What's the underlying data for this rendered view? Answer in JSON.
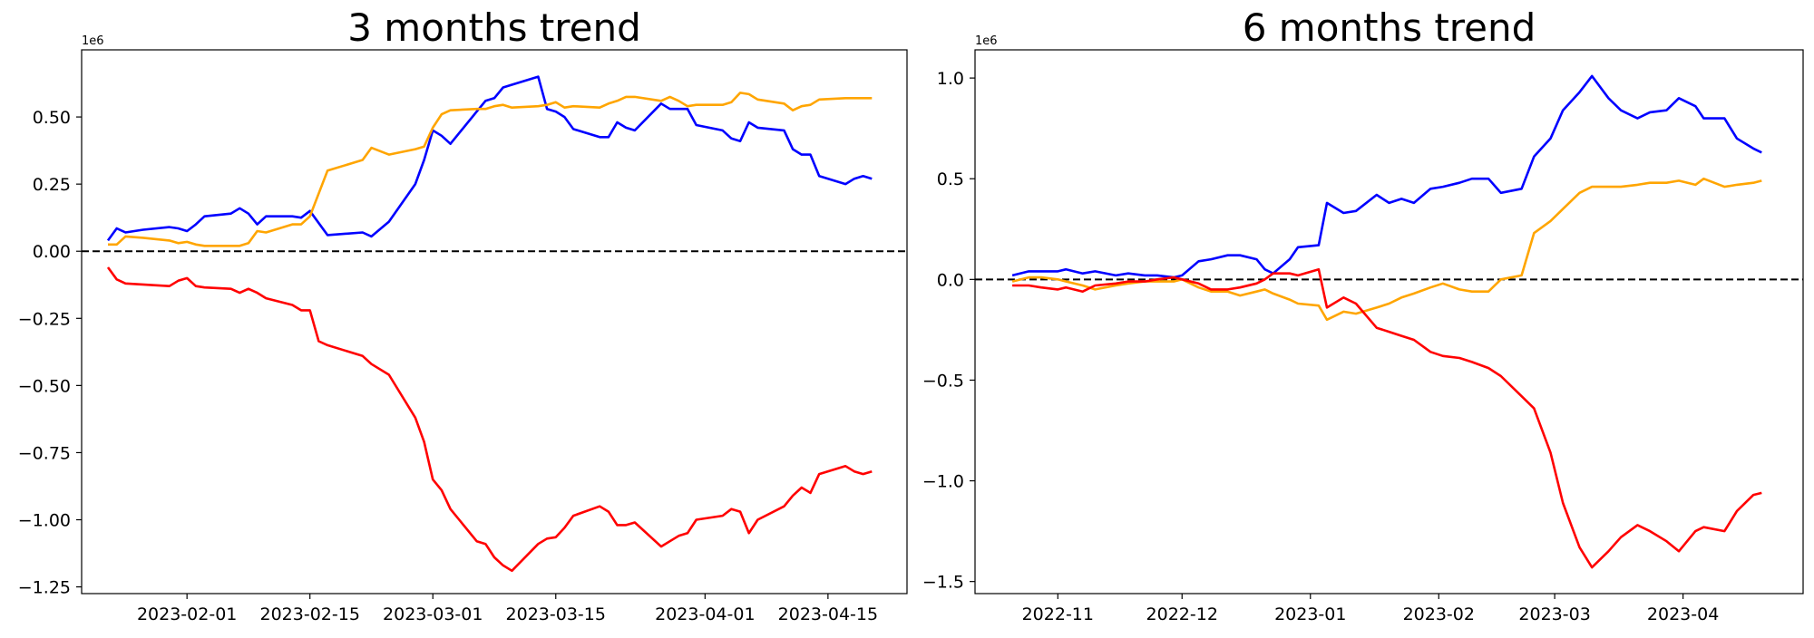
{
  "chart_data": [
    {
      "type": "line",
      "title": "3 months trend",
      "xlabel": "",
      "ylabel": "",
      "y_offset_text": "1e6",
      "x_type": "date",
      "xlim": [
        "2023-01-20",
        "2023-04-24"
      ],
      "ylim": [
        -1.275,
        0.75
      ],
      "x_ticks": [
        {
          "value": "2023-02-01",
          "label": "2023-02-01"
        },
        {
          "value": "2023-02-15",
          "label": "2023-02-15"
        },
        {
          "value": "2023-03-01",
          "label": "2023-03-01"
        },
        {
          "value": "2023-03-15",
          "label": "2023-03-15"
        },
        {
          "value": "2023-04-01",
          "label": "2023-04-01"
        },
        {
          "value": "2023-04-15",
          "label": "2023-04-15"
        }
      ],
      "y_ticks": [
        {
          "value": 0.5,
          "label": "0.50"
        },
        {
          "value": 0.25,
          "label": "0.25"
        },
        {
          "value": 0.0,
          "label": "0.00"
        },
        {
          "value": -0.25,
          "label": "−0.25"
        },
        {
          "value": -0.5,
          "label": "−0.50"
        },
        {
          "value": -0.75,
          "label": "−0.75"
        },
        {
          "value": -1.0,
          "label": "−1.00"
        },
        {
          "value": -1.25,
          "label": "−1.25"
        }
      ],
      "reference_line": {
        "y": 0,
        "style": "dashed",
        "color": "#000000"
      },
      "grid": false,
      "series": [
        {
          "color": "#0000ff",
          "x": [
            "2023-01-23",
            "2023-01-24",
            "2023-01-25",
            "2023-01-27",
            "2023-01-30",
            "2023-01-31",
            "2023-02-01",
            "2023-02-02",
            "2023-02-03",
            "2023-02-06",
            "2023-02-07",
            "2023-02-08",
            "2023-02-09",
            "2023-02-10",
            "2023-02-13",
            "2023-02-14",
            "2023-02-15",
            "2023-02-17",
            "2023-02-21",
            "2023-02-22",
            "2023-02-24",
            "2023-02-27",
            "2023-02-28",
            "2023-03-01",
            "2023-03-02",
            "2023-03-03",
            "2023-03-06",
            "2023-03-07",
            "2023-03-08",
            "2023-03-09",
            "2023-03-10",
            "2023-03-13",
            "2023-03-14",
            "2023-03-15",
            "2023-03-16",
            "2023-03-17",
            "2023-03-20",
            "2023-03-21",
            "2023-03-22",
            "2023-03-23",
            "2023-03-24",
            "2023-03-27",
            "2023-03-28",
            "2023-03-29",
            "2023-03-30",
            "2023-03-31",
            "2023-04-03",
            "2023-04-04",
            "2023-04-05",
            "2023-04-06",
            "2023-04-07",
            "2023-04-10",
            "2023-04-11",
            "2023-04-12",
            "2023-04-13",
            "2023-04-14",
            "2023-04-17",
            "2023-04-18",
            "2023-04-19",
            "2023-04-20"
          ],
          "y": [
            0.04,
            0.085,
            0.07,
            0.08,
            0.09,
            0.085,
            0.075,
            0.1,
            0.13,
            0.14,
            0.16,
            0.14,
            0.1,
            0.13,
            0.13,
            0.125,
            0.15,
            0.06,
            0.07,
            0.055,
            0.11,
            0.25,
            0.34,
            0.45,
            0.43,
            0.4,
            0.52,
            0.56,
            0.57,
            0.61,
            0.62,
            0.65,
            0.53,
            0.52,
            0.5,
            0.455,
            0.425,
            0.425,
            0.48,
            0.46,
            0.45,
            0.55,
            0.53,
            0.53,
            0.53,
            0.47,
            0.45,
            0.42,
            0.41,
            0.48,
            0.46,
            0.45,
            0.38,
            0.36,
            0.36,
            0.28,
            0.25,
            0.27,
            0.28,
            0.27
          ]
        },
        {
          "color": "#ffa500",
          "x": [
            "2023-01-23",
            "2023-01-24",
            "2023-01-25",
            "2023-01-27",
            "2023-01-30",
            "2023-01-31",
            "2023-02-01",
            "2023-02-02",
            "2023-02-03",
            "2023-02-06",
            "2023-02-07",
            "2023-02-08",
            "2023-02-09",
            "2023-02-10",
            "2023-02-13",
            "2023-02-14",
            "2023-02-15",
            "2023-02-17",
            "2023-02-21",
            "2023-02-22",
            "2023-02-24",
            "2023-02-27",
            "2023-02-28",
            "2023-03-01",
            "2023-03-02",
            "2023-03-03",
            "2023-03-06",
            "2023-03-07",
            "2023-03-08",
            "2023-03-09",
            "2023-03-10",
            "2023-03-13",
            "2023-03-14",
            "2023-03-15",
            "2023-03-16",
            "2023-03-17",
            "2023-03-20",
            "2023-03-21",
            "2023-03-22",
            "2023-03-23",
            "2023-03-24",
            "2023-03-27",
            "2023-03-28",
            "2023-03-29",
            "2023-03-30",
            "2023-03-31",
            "2023-04-03",
            "2023-04-04",
            "2023-04-05",
            "2023-04-06",
            "2023-04-07",
            "2023-04-10",
            "2023-04-11",
            "2023-04-12",
            "2023-04-13",
            "2023-04-14",
            "2023-04-17",
            "2023-04-18",
            "2023-04-19",
            "2023-04-20"
          ],
          "y": [
            0.025,
            0.025,
            0.055,
            0.05,
            0.04,
            0.03,
            0.035,
            0.025,
            0.02,
            0.02,
            0.02,
            0.03,
            0.075,
            0.07,
            0.1,
            0.1,
            0.13,
            0.3,
            0.34,
            0.385,
            0.36,
            0.38,
            0.39,
            0.46,
            0.51,
            0.525,
            0.53,
            0.53,
            0.54,
            0.545,
            0.535,
            0.54,
            0.545,
            0.555,
            0.535,
            0.54,
            0.535,
            0.55,
            0.56,
            0.575,
            0.575,
            0.56,
            0.575,
            0.56,
            0.54,
            0.545,
            0.545,
            0.555,
            0.59,
            0.585,
            0.565,
            0.55,
            0.525,
            0.54,
            0.545,
            0.565,
            0.57,
            0.57,
            0.57,
            0.57
          ]
        },
        {
          "color": "#ff0000",
          "x": [
            "2023-01-23",
            "2023-01-24",
            "2023-01-25",
            "2023-01-30",
            "2023-01-31",
            "2023-02-01",
            "2023-02-02",
            "2023-02-03",
            "2023-02-06",
            "2023-02-07",
            "2023-02-08",
            "2023-02-09",
            "2023-02-10",
            "2023-02-13",
            "2023-02-14",
            "2023-02-15",
            "2023-02-16",
            "2023-02-17",
            "2023-02-21",
            "2023-02-22",
            "2023-02-24",
            "2023-02-27",
            "2023-02-28",
            "2023-03-01",
            "2023-03-02",
            "2023-03-03",
            "2023-03-06",
            "2023-03-07",
            "2023-03-08",
            "2023-03-09",
            "2023-03-10",
            "2023-03-13",
            "2023-03-14",
            "2023-03-15",
            "2023-03-16",
            "2023-03-17",
            "2023-03-20",
            "2023-03-21",
            "2023-03-22",
            "2023-03-23",
            "2023-03-24",
            "2023-03-27",
            "2023-03-28",
            "2023-03-29",
            "2023-03-30",
            "2023-03-31",
            "2023-04-03",
            "2023-04-04",
            "2023-04-05",
            "2023-04-06",
            "2023-04-07",
            "2023-04-10",
            "2023-04-11",
            "2023-04-12",
            "2023-04-13",
            "2023-04-14",
            "2023-04-17",
            "2023-04-18",
            "2023-04-19",
            "2023-04-20"
          ],
          "y": [
            -0.06,
            -0.105,
            -0.12,
            -0.13,
            -0.11,
            -0.1,
            -0.13,
            -0.135,
            -0.14,
            -0.155,
            -0.14,
            -0.155,
            -0.175,
            -0.2,
            -0.22,
            -0.22,
            -0.335,
            -0.35,
            -0.39,
            -0.42,
            -0.46,
            -0.62,
            -0.71,
            -0.85,
            -0.89,
            -0.96,
            -1.08,
            -1.09,
            -1.14,
            -1.17,
            -1.19,
            -1.09,
            -1.07,
            -1.065,
            -1.03,
            -0.985,
            -0.95,
            -0.97,
            -1.02,
            -1.02,
            -1.01,
            -1.1,
            -1.08,
            -1.06,
            -1.05,
            -1.0,
            -0.985,
            -0.96,
            -0.97,
            -1.05,
            -1.0,
            -0.95,
            -0.91,
            -0.88,
            -0.9,
            -0.83,
            -0.8,
            -0.82,
            -0.83,
            -0.82
          ]
        }
      ]
    },
    {
      "type": "line",
      "title": "6 months trend",
      "xlabel": "",
      "ylabel": "",
      "y_offset_text": "1e6",
      "x_type": "date",
      "xlim": [
        "2022-10-12",
        "2023-04-30"
      ],
      "ylim": [
        -1.56,
        1.14
      ],
      "x_ticks": [
        {
          "value": "2022-11-01",
          "label": "2022-11"
        },
        {
          "value": "2022-12-01",
          "label": "2022-12"
        },
        {
          "value": "2023-01-01",
          "label": "2023-01"
        },
        {
          "value": "2023-02-01",
          "label": "2023-02"
        },
        {
          "value": "2023-03-01",
          "label": "2023-03"
        },
        {
          "value": "2023-04-01",
          "label": "2023-04"
        }
      ],
      "y_ticks": [
        {
          "value": 1.0,
          "label": "1.0"
        },
        {
          "value": 0.5,
          "label": "0.5"
        },
        {
          "value": 0.0,
          "label": "0.0"
        },
        {
          "value": -0.5,
          "label": "−0.5"
        },
        {
          "value": -1.0,
          "label": "−1.0"
        },
        {
          "value": -1.5,
          "label": "−1.5"
        }
      ],
      "reference_line": {
        "y": 0,
        "style": "dashed",
        "color": "#000000"
      },
      "grid": false,
      "series": [
        {
          "color": "#0000ff",
          "x": [
            "2022-10-21",
            "2022-10-25",
            "2022-10-28",
            "2022-11-01",
            "2022-11-03",
            "2022-11-07",
            "2022-11-10",
            "2022-11-15",
            "2022-11-18",
            "2022-11-22",
            "2022-11-25",
            "2022-11-29",
            "2022-12-01",
            "2022-12-05",
            "2022-12-08",
            "2022-12-12",
            "2022-12-15",
            "2022-12-19",
            "2022-12-21",
            "2022-12-23",
            "2022-12-27",
            "2022-12-29",
            "2023-01-03",
            "2023-01-05",
            "2023-01-09",
            "2023-01-12",
            "2023-01-17",
            "2023-01-20",
            "2023-01-23",
            "2023-01-26",
            "2023-01-30",
            "2023-02-02",
            "2023-02-06",
            "2023-02-09",
            "2023-02-13",
            "2023-02-16",
            "2023-02-21",
            "2023-02-24",
            "2023-02-28",
            "2023-03-03",
            "2023-03-07",
            "2023-03-10",
            "2023-03-14",
            "2023-03-17",
            "2023-03-21",
            "2023-03-24",
            "2023-03-28",
            "2023-03-31",
            "2023-04-04",
            "2023-04-06",
            "2023-04-11",
            "2023-04-14",
            "2023-04-18",
            "2023-04-20"
          ],
          "y": [
            0.02,
            0.04,
            0.04,
            0.04,
            0.05,
            0.03,
            0.04,
            0.02,
            0.03,
            0.02,
            0.02,
            0.01,
            0.02,
            0.09,
            0.1,
            0.12,
            0.12,
            0.1,
            0.05,
            0.03,
            0.1,
            0.16,
            0.17,
            0.38,
            0.33,
            0.34,
            0.42,
            0.38,
            0.4,
            0.38,
            0.45,
            0.46,
            0.48,
            0.5,
            0.5,
            0.43,
            0.45,
            0.61,
            0.7,
            0.84,
            0.93,
            1.01,
            0.9,
            0.84,
            0.8,
            0.83,
            0.84,
            0.9,
            0.86,
            0.8,
            0.8,
            0.7,
            0.65,
            0.63
          ]
        },
        {
          "color": "#ffa500",
          "x": [
            "2022-10-21",
            "2022-10-25",
            "2022-10-28",
            "2022-11-01",
            "2022-11-03",
            "2022-11-07",
            "2022-11-10",
            "2022-11-15",
            "2022-11-18",
            "2022-11-22",
            "2022-11-25",
            "2022-11-29",
            "2022-12-01",
            "2022-12-05",
            "2022-12-08",
            "2022-12-12",
            "2022-12-15",
            "2022-12-19",
            "2022-12-21",
            "2022-12-23",
            "2022-12-27",
            "2022-12-29",
            "2023-01-03",
            "2023-01-05",
            "2023-01-09",
            "2023-01-12",
            "2023-01-17",
            "2023-01-20",
            "2023-01-23",
            "2023-01-26",
            "2023-01-30",
            "2023-02-02",
            "2023-02-06",
            "2023-02-09",
            "2023-02-13",
            "2023-02-16",
            "2023-02-21",
            "2023-02-24",
            "2023-02-28",
            "2023-03-03",
            "2023-03-07",
            "2023-03-10",
            "2023-03-14",
            "2023-03-17",
            "2023-03-21",
            "2023-03-24",
            "2023-03-28",
            "2023-03-31",
            "2023-04-04",
            "2023-04-06",
            "2023-04-11",
            "2023-04-14",
            "2023-04-18",
            "2023-04-20"
          ],
          "y": [
            -0.01,
            0.01,
            0.01,
            0.0,
            -0.01,
            -0.03,
            -0.05,
            -0.03,
            -0.02,
            -0.01,
            -0.01,
            -0.01,
            0.0,
            -0.04,
            -0.06,
            -0.06,
            -0.08,
            -0.06,
            -0.05,
            -0.07,
            -0.1,
            -0.12,
            -0.13,
            -0.2,
            -0.16,
            -0.17,
            -0.14,
            -0.12,
            -0.09,
            -0.07,
            -0.04,
            -0.02,
            -0.05,
            -0.06,
            -0.06,
            0.0,
            0.02,
            0.23,
            0.29,
            0.35,
            0.43,
            0.46,
            0.46,
            0.46,
            0.47,
            0.48,
            0.48,
            0.49,
            0.47,
            0.5,
            0.46,
            0.47,
            0.48,
            0.49
          ]
        },
        {
          "color": "#ff0000",
          "x": [
            "2022-10-21",
            "2022-10-25",
            "2022-10-28",
            "2022-11-01",
            "2022-11-03",
            "2022-11-07",
            "2022-11-10",
            "2022-11-15",
            "2022-11-18",
            "2022-11-22",
            "2022-11-25",
            "2022-11-29",
            "2022-12-01",
            "2022-12-05",
            "2022-12-08",
            "2022-12-12",
            "2022-12-15",
            "2022-12-19",
            "2022-12-21",
            "2022-12-23",
            "2022-12-27",
            "2022-12-29",
            "2023-01-03",
            "2023-01-05",
            "2023-01-09",
            "2023-01-12",
            "2023-01-17",
            "2023-01-20",
            "2023-01-23",
            "2023-01-26",
            "2023-01-30",
            "2023-02-02",
            "2023-02-06",
            "2023-02-09",
            "2023-02-13",
            "2023-02-16",
            "2023-02-21",
            "2023-02-24",
            "2023-02-28",
            "2023-03-03",
            "2023-03-07",
            "2023-03-10",
            "2023-03-14",
            "2023-03-17",
            "2023-03-21",
            "2023-03-24",
            "2023-03-28",
            "2023-03-31",
            "2023-04-04",
            "2023-04-06",
            "2023-04-11",
            "2023-04-14",
            "2023-04-18",
            "2023-04-20"
          ],
          "y": [
            -0.03,
            -0.03,
            -0.04,
            -0.05,
            -0.04,
            -0.06,
            -0.03,
            -0.02,
            -0.01,
            -0.01,
            0.0,
            0.01,
            0.0,
            -0.02,
            -0.05,
            -0.05,
            -0.04,
            -0.02,
            0.0,
            0.03,
            0.03,
            0.02,
            0.05,
            -0.14,
            -0.09,
            -0.12,
            -0.24,
            -0.26,
            -0.28,
            -0.3,
            -0.36,
            -0.38,
            -0.39,
            -0.41,
            -0.44,
            -0.48,
            -0.58,
            -0.64,
            -0.86,
            -1.11,
            -1.33,
            -1.43,
            -1.35,
            -1.28,
            -1.22,
            -1.25,
            -1.3,
            -1.35,
            -1.25,
            -1.23,
            -1.25,
            -1.15,
            -1.07,
            -1.06
          ]
        }
      ]
    }
  ]
}
